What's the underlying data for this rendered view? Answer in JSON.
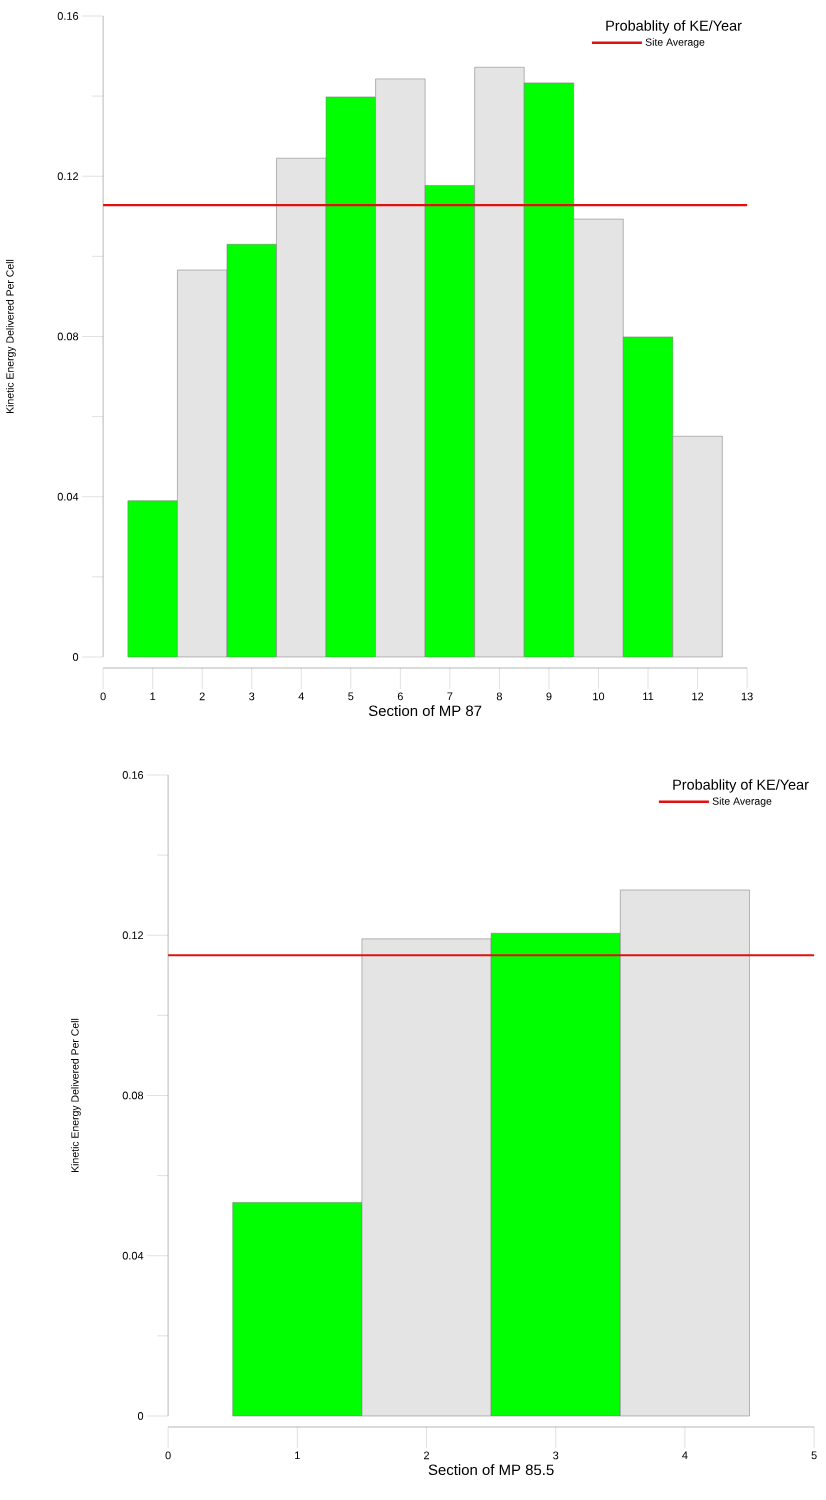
{
  "chart_data": [
    {
      "type": "bar",
      "xlabel": "Section of MP 87",
      "ylabel": "Kinetic Energy Delivered Per Cell",
      "legend_title": "Probablity of KE/Year",
      "legend": "top right",
      "x": [
        1,
        2,
        3,
        4,
        5,
        6,
        7,
        8,
        9,
        10,
        11,
        12
      ],
      "values": [
        0.039,
        0.0966,
        0.103,
        0.1245,
        0.1398,
        0.1443,
        0.1177,
        0.1472,
        0.1433,
        0.1093,
        0.0799,
        0.0551
      ],
      "colors": [
        "#00ff00",
        "#e4e4e4",
        "#00ff00",
        "#e4e4e4",
        "#00ff00",
        "#e4e4e4",
        "#00ff00",
        "#e4e4e4",
        "#00ff00",
        "#e4e4e4",
        "#00ff00",
        "#e4e4e4"
      ],
      "ref_lines": [
        {
          "axis": "y",
          "value": 0.1128,
          "label": "Site Average",
          "color": "#e01010"
        }
      ],
      "xlim": [
        0,
        13
      ],
      "xticks": [
        0,
        1,
        2,
        3,
        4,
        5,
        6,
        7,
        8,
        9,
        10,
        11,
        12,
        13
      ],
      "ylim": [
        0,
        0.16
      ],
      "yticks": [
        0,
        {
          "value": 0.02,
          "label": null
        },
        0.04,
        {
          "value": 0.06,
          "label": null
        },
        0.08,
        {
          "value": 0.1,
          "label": null
        },
        0.12,
        {
          "value": 0.14,
          "label": null
        },
        0.16
      ]
    },
    {
      "type": "bar",
      "xlabel": "Section of MP 85.5",
      "ylabel": "Kinetic Energy Delivered Per Cell",
      "legend_title": "Probablity of KE/Year",
      "legend": "top right",
      "x": [
        1,
        2,
        3,
        4
      ],
      "values": [
        0.0533,
        0.1191,
        0.1205,
        0.1313
      ],
      "colors": [
        "#00ff00",
        "#e4e4e4",
        "#00ff00",
        "#e4e4e4"
      ],
      "ref_lines": [
        {
          "axis": "y",
          "value": 0.115,
          "label": "Site Average",
          "color": "#e01010"
        }
      ],
      "xlim": [
        0,
        5
      ],
      "xticks": [
        0,
        1,
        2,
        3,
        4,
        5
      ],
      "ylim": [
        0,
        0.16
      ],
      "yticks": [
        0,
        {
          "value": 0.02,
          "label": null
        },
        0.04,
        {
          "value": 0.06,
          "label": null
        },
        0.08,
        {
          "value": 0.1,
          "label": null
        },
        0.12,
        {
          "value": 0.14,
          "label": null
        },
        0.16
      ]
    }
  ]
}
